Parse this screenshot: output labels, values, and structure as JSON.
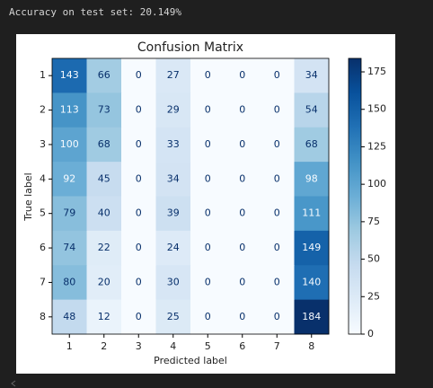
{
  "output_text": "Accuracy on test set: 20.149%",
  "chart_data": {
    "type": "heatmap",
    "title": "Confusion Matrix",
    "x_label": "Predicted label",
    "y_label": "True label",
    "x_categories": [
      1,
      2,
      3,
      4,
      5,
      6,
      7,
      8
    ],
    "y_categories": [
      1,
      2,
      3,
      4,
      5,
      6,
      7,
      8
    ],
    "values": [
      [
        143,
        66,
        0,
        27,
        0,
        0,
        0,
        34
      ],
      [
        113,
        73,
        0,
        29,
        0,
        0,
        0,
        54
      ],
      [
        100,
        68,
        0,
        33,
        0,
        0,
        0,
        68
      ],
      [
        92,
        45,
        0,
        34,
        0,
        0,
        0,
        98
      ],
      [
        79,
        40,
        0,
        39,
        0,
        0,
        0,
        111
      ],
      [
        74,
        22,
        0,
        24,
        0,
        0,
        0,
        149
      ],
      [
        80,
        20,
        0,
        30,
        0,
        0,
        0,
        140
      ],
      [
        48,
        12,
        0,
        25,
        0,
        0,
        0,
        184
      ]
    ],
    "colormap": [
      "#f7fbff",
      "#deebf7",
      "#c6dbef",
      "#9ecae1",
      "#6baed6",
      "#4292c6",
      "#2171b5",
      "#08519c",
      "#08306b"
    ],
    "clim": [
      0,
      184
    ],
    "cticks": [
      0,
      25,
      50,
      75,
      100,
      125,
      150,
      175
    ]
  }
}
